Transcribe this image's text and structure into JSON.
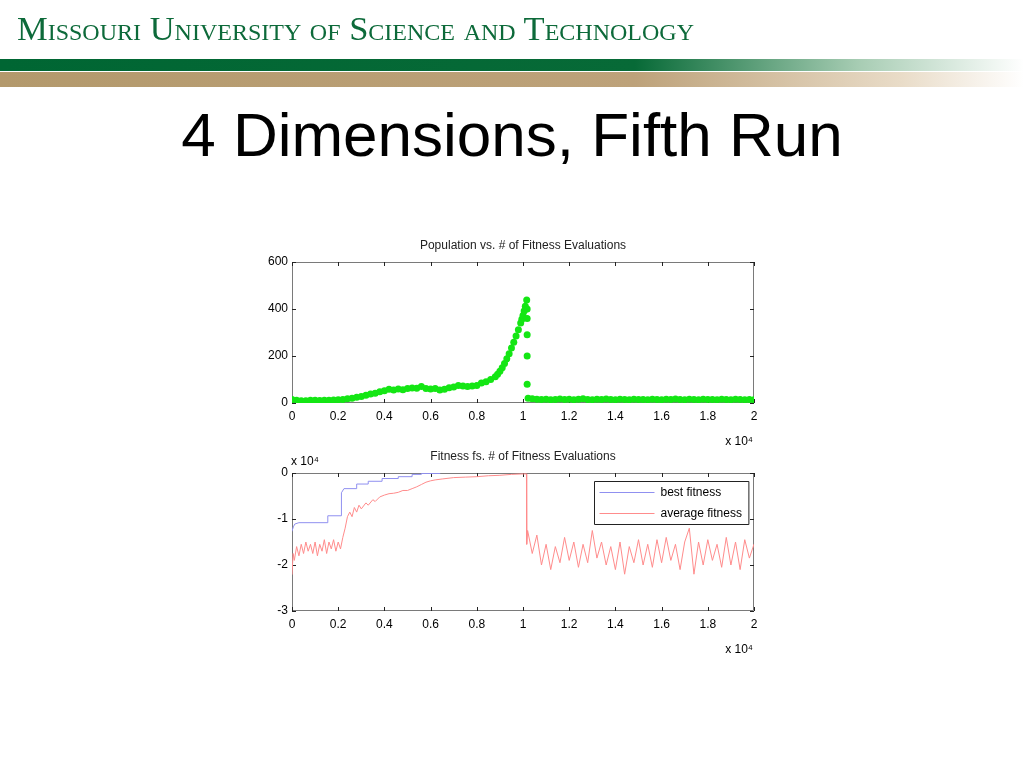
{
  "chart_data": [
    {
      "type": "other",
      "title": "4 Dimensions, Fifth Run",
      "annotations": [
        "Missouri University of Science and Technology"
      ]
    },
    {
      "type": "scatter",
      "title": "Population vs. # of Fitness Evaluations",
      "color": "#14e614",
      "marker": "circle",
      "x": [
        0,
        0.02,
        0.04,
        0.06,
        0.08,
        0.1,
        0.12,
        0.14,
        0.16,
        0.18,
        0.2,
        0.22,
        0.24,
        0.26,
        0.28,
        0.3,
        0.32,
        0.34,
        0.36,
        0.38,
        0.4,
        0.42,
        0.44,
        0.46,
        0.48,
        0.5,
        0.52,
        0.54,
        0.56,
        0.58,
        0.6,
        0.62,
        0.64,
        0.66,
        0.68,
        0.7,
        0.72,
        0.74,
        0.76,
        0.78,
        0.8,
        0.82,
        0.84,
        0.86,
        0.88,
        0.89,
        0.9,
        0.91,
        0.92,
        0.93,
        0.94,
        0.95,
        0.96,
        0.97,
        0.98,
        0.99,
        0.995,
        1,
        1.005,
        1.01,
        1.016,
        1.018,
        1.018,
        1.018,
        1.018,
        1.018,
        1.022,
        1.04,
        1.06,
        1.08,
        1.1,
        1.12,
        1.14,
        1.16,
        1.18,
        1.2,
        1.22,
        1.24,
        1.26,
        1.28,
        1.3,
        1.32,
        1.34,
        1.36,
        1.38,
        1.4,
        1.42,
        1.44,
        1.46,
        1.48,
        1.5,
        1.52,
        1.54,
        1.56,
        1.58,
        1.6,
        1.62,
        1.64,
        1.66,
        1.68,
        1.7,
        1.72,
        1.74,
        1.76,
        1.78,
        1.8,
        1.82,
        1.84,
        1.86,
        1.88,
        1.9,
        1.92,
        1.94,
        1.96,
        1.98,
        2
      ],
      "values": [
        15,
        12,
        10,
        10,
        12,
        12,
        11,
        12,
        12,
        13,
        14,
        15,
        18,
        20,
        25,
        28,
        33,
        38,
        42,
        48,
        52,
        58,
        55,
        60,
        56,
        62,
        64,
        63,
        70,
        62,
        60,
        62,
        55,
        58,
        65,
        68,
        75,
        72,
        70,
        72,
        75,
        85,
        90,
        100,
        112,
        122,
        135,
        150,
        168,
        188,
        210,
        234,
        258,
        285,
        312,
        340,
        356,
        372,
        392,
        412,
        438,
        400,
        360,
        290,
        200,
        80,
        20,
        18,
        16,
        15,
        16,
        14,
        15,
        17,
        15,
        16,
        14,
        16,
        18,
        15,
        14,
        16,
        15,
        17,
        15,
        14,
        16,
        15,
        14,
        16,
        15,
        15,
        14,
        16,
        15,
        14,
        16,
        15,
        17,
        15,
        14,
        16,
        15,
        14,
        16,
        15,
        15,
        14,
        16,
        15,
        14,
        16,
        15,
        14,
        15,
        14
      ],
      "xlim": [
        0,
        2
      ],
      "xticks": [
        0,
        0.2,
        0.4,
        0.6,
        0.8,
        1,
        1.2,
        1.4,
        1.6,
        1.8,
        2
      ],
      "ylim": [
        0,
        600
      ],
      "yticks": [
        0,
        200,
        400,
        600
      ],
      "annotations": [
        "x 10⁴"
      ]
    },
    {
      "type": "line",
      "title": "Fitness fs. # of Fitness Evaluations",
      "legend": "top right",
      "line_style": "solid",
      "xlim": [
        0,
        2
      ],
      "xticks": [
        0,
        0.2,
        0.4,
        0.6,
        0.8,
        1,
        1.2,
        1.4,
        1.6,
        1.8,
        2
      ],
      "ylim": [
        -3,
        0
      ],
      "yticks": [
        -3,
        -2,
        -1,
        0
      ],
      "annotations": [
        "x 10⁴",
        "x 10⁴"
      ],
      "series": [
        {
          "name": "best fitness",
          "color": "#9090f0",
          "x": [
            0,
            0.006,
            0.012,
            0.03,
            0.155,
            0.155,
            0.214,
            0.214,
            0.225,
            0.28,
            0.28,
            0.33,
            0.33,
            0.39,
            0.39,
            0.46,
            0.46,
            0.52,
            0.52,
            0.56,
            0.56,
            0.64
          ],
          "values": [
            -1.26,
            -1.17,
            -1.11,
            -1.08,
            -1.08,
            -0.93,
            -0.93,
            -0.43,
            -0.34,
            -0.34,
            -0.24,
            -0.24,
            -0.18,
            -0.18,
            -0.12,
            -0.12,
            -0.08,
            -0.08,
            -0.03,
            -0.03,
            -0.01,
            -0.01
          ]
        },
        {
          "name": "average fitness",
          "color": "#ff8c8c",
          "x": [
            0,
            0.005,
            0.01,
            0.02,
            0.03,
            0.04,
            0.05,
            0.06,
            0.07,
            0.08,
            0.09,
            0.1,
            0.11,
            0.12,
            0.13,
            0.14,
            0.15,
            0.16,
            0.17,
            0.18,
            0.19,
            0.2,
            0.21,
            0.22,
            0.23,
            0.24,
            0.25,
            0.26,
            0.27,
            0.28,
            0.29,
            0.3,
            0.32,
            0.33,
            0.35,
            0.36,
            0.38,
            0.4,
            0.42,
            0.44,
            0.46,
            0.48,
            0.5,
            0.52,
            0.54,
            0.56,
            0.58,
            0.6,
            0.62,
            0.65,
            0.7,
            0.75,
            0.8,
            0.85,
            0.9,
            0.95,
            1,
            1.015,
            1.016,
            1.02,
            1.04,
            1.06,
            1.08,
            1.1,
            1.12,
            1.14,
            1.16,
            1.18,
            1.2,
            1.22,
            1.24,
            1.26,
            1.28,
            1.3,
            1.32,
            1.34,
            1.36,
            1.38,
            1.4,
            1.42,
            1.44,
            1.46,
            1.48,
            1.5,
            1.52,
            1.54,
            1.56,
            1.58,
            1.6,
            1.62,
            1.64,
            1.66,
            1.68,
            1.7,
            1.72,
            1.74,
            1.76,
            1.78,
            1.8,
            1.82,
            1.84,
            1.86,
            1.88,
            1.9,
            1.92,
            1.94,
            1.96,
            1.98,
            2
          ],
          "values": [
            -2.2,
            -1.75,
            -1.9,
            -1.6,
            -1.8,
            -1.55,
            -1.75,
            -1.5,
            -1.7,
            -1.55,
            -1.75,
            -1.5,
            -1.8,
            -1.55,
            -1.7,
            -1.45,
            -1.75,
            -1.5,
            -1.65,
            -1.45,
            -1.7,
            -1.5,
            -1.65,
            -1.4,
            -1.2,
            -0.95,
            -0.85,
            -0.95,
            -0.75,
            -0.85,
            -0.7,
            -0.78,
            -0.65,
            -0.7,
            -0.58,
            -0.62,
            -0.52,
            -0.48,
            -0.45,
            -0.44,
            -0.42,
            -0.38,
            -0.38,
            -0.34,
            -0.3,
            -0.25,
            -0.2,
            -0.17,
            -0.15,
            -0.13,
            -0.1,
            -0.09,
            -0.08,
            -0.06,
            -0.05,
            -0.03,
            -0.02,
            -0.02,
            -1.55,
            -1.25,
            -1.75,
            -1.35,
            -2,
            -1.55,
            -2.1,
            -1.6,
            -1.95,
            -1.4,
            -1.9,
            -1.5,
            -2.05,
            -1.55,
            -1.95,
            -1.25,
            -1.85,
            -1.5,
            -2,
            -1.6,
            -2.1,
            -1.5,
            -2.2,
            -1.6,
            -1.95,
            -1.45,
            -2,
            -1.55,
            -2.05,
            -1.45,
            -1.95,
            -1.4,
            -1.9,
            -1.55,
            -2.1,
            -1.5,
            -1.2,
            -2.2,
            -1.5,
            -2,
            -1.45,
            -1.9,
            -1.55,
            -2.05,
            -1.4,
            -2,
            -1.5,
            -2.1,
            -1.45,
            -1.85,
            -1.55
          ]
        }
      ]
    }
  ]
}
